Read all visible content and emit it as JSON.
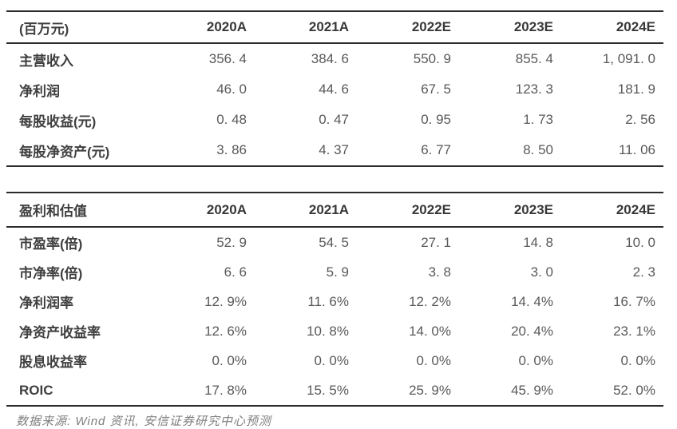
{
  "colors": {
    "rule": "#2b2b2b",
    "header_text": "#383838",
    "label_text": "#3f3f3f",
    "value_text": "#595959",
    "footer_text": "#7f7f7f",
    "background": "#ffffff"
  },
  "table1": {
    "unit_label": "(百万元)",
    "columns": [
      "2020A",
      "2021A",
      "2022E",
      "2023E",
      "2024E"
    ],
    "rows": [
      {
        "label": "主营收入",
        "values": [
          "356. 4",
          "384. 6",
          "550. 9",
          "855. 4",
          "1, 091. 0"
        ]
      },
      {
        "label": "净利润",
        "values": [
          "46. 0",
          "44. 6",
          "67. 5",
          "123. 3",
          "181. 9"
        ]
      },
      {
        "label": "每股收益(元)",
        "values": [
          "0. 48",
          "0. 47",
          "0. 95",
          "1. 73",
          "2. 56"
        ]
      },
      {
        "label": "每股净资产(元)",
        "values": [
          "3. 86",
          "4. 37",
          "6. 77",
          "8. 50",
          "11. 06"
        ]
      }
    ]
  },
  "table2": {
    "header_label": "盈利和估值",
    "columns": [
      "2020A",
      "2021A",
      "2022E",
      "2023E",
      "2024E"
    ],
    "rows": [
      {
        "label": "市盈率(倍)",
        "values": [
          "52. 9",
          "54. 5",
          "27. 1",
          "14. 8",
          "10. 0"
        ]
      },
      {
        "label": "市净率(倍)",
        "values": [
          "6. 6",
          "5. 9",
          "3. 8",
          "3. 0",
          "2. 3"
        ]
      },
      {
        "label": "净利润率",
        "values": [
          "12. 9%",
          "11. 6%",
          "12. 2%",
          "14. 4%",
          "16. 7%"
        ]
      },
      {
        "label": "净资产收益率",
        "values": [
          "12. 6%",
          "10. 8%",
          "14. 0%",
          "20. 4%",
          "23. 1%"
        ]
      },
      {
        "label": "股息收益率",
        "values": [
          "0. 0%",
          "0. 0%",
          "0. 0%",
          "0. 0%",
          "0. 0%"
        ]
      },
      {
        "label": "ROIC",
        "values": [
          "17. 8%",
          "15. 5%",
          "25. 9%",
          "45. 9%",
          "52. 0%"
        ]
      }
    ]
  },
  "footer": {
    "source": "数据来源: Wind 资讯, 安信证券研究中心预测"
  }
}
